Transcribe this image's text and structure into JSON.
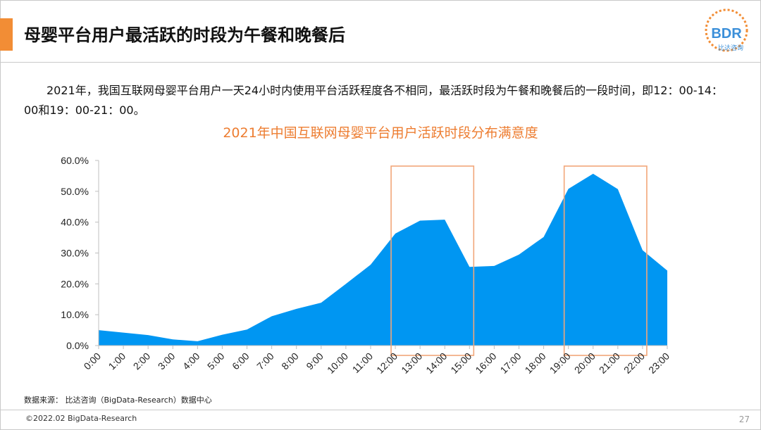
{
  "slide": {
    "title": "母婴平台用户最活跃的时段为午餐和晚餐后",
    "intro": "2021年，我国互联网母婴平台用户一天24小时内使用平台活跃程度各不相同，最活跃时段为午餐和晚餐后的一段时间，即12：00-14：00和19：00-21：00。",
    "source": "数据来源： 比达咨询（BigData-Research）数据中心",
    "copyright": "©2022.02 BigData-Research",
    "page_number": "27",
    "logo_text": "BDR",
    "logo_subtext": "比达咨询",
    "accent_color": "#F28D35"
  },
  "chart_data": {
    "type": "area",
    "title": "2021年中国互联网母婴平台用户活跃时段分布满意度",
    "categories": [
      "0:00",
      "1:00",
      "2:00",
      "3:00",
      "4:00",
      "5:00",
      "6:00",
      "7:00",
      "8:00",
      "9:00",
      "10:00",
      "11:00",
      "12:00",
      "13:00",
      "14:00",
      "15:00",
      "16:00",
      "17:00",
      "18:00",
      "19:00",
      "20:00",
      "21:00",
      "22:00",
      "23:00"
    ],
    "values": [
      5.0,
      4.2,
      3.4,
      2.0,
      1.4,
      3.5,
      5.2,
      9.5,
      11.9,
      13.9,
      20.0,
      26.2,
      36.3,
      40.5,
      40.8,
      25.5,
      25.8,
      29.5,
      35.2,
      50.8,
      55.7,
      50.7,
      30.9,
      24.3
    ],
    "y_tick_labels": [
      "0.0%",
      "10.0%",
      "20.0%",
      "30.0%",
      "40.0%",
      "50.0%",
      "60.0%"
    ],
    "ylim": [
      0,
      60
    ],
    "y_tick_step": 10,
    "xlabel": "",
    "ylabel": "",
    "fill_color": "#0096F2",
    "highlight_color": "#F2A77A",
    "highlight_ranges": [
      [
        "12:00",
        "15:00"
      ],
      [
        "19:00",
        "22:00"
      ]
    ]
  }
}
